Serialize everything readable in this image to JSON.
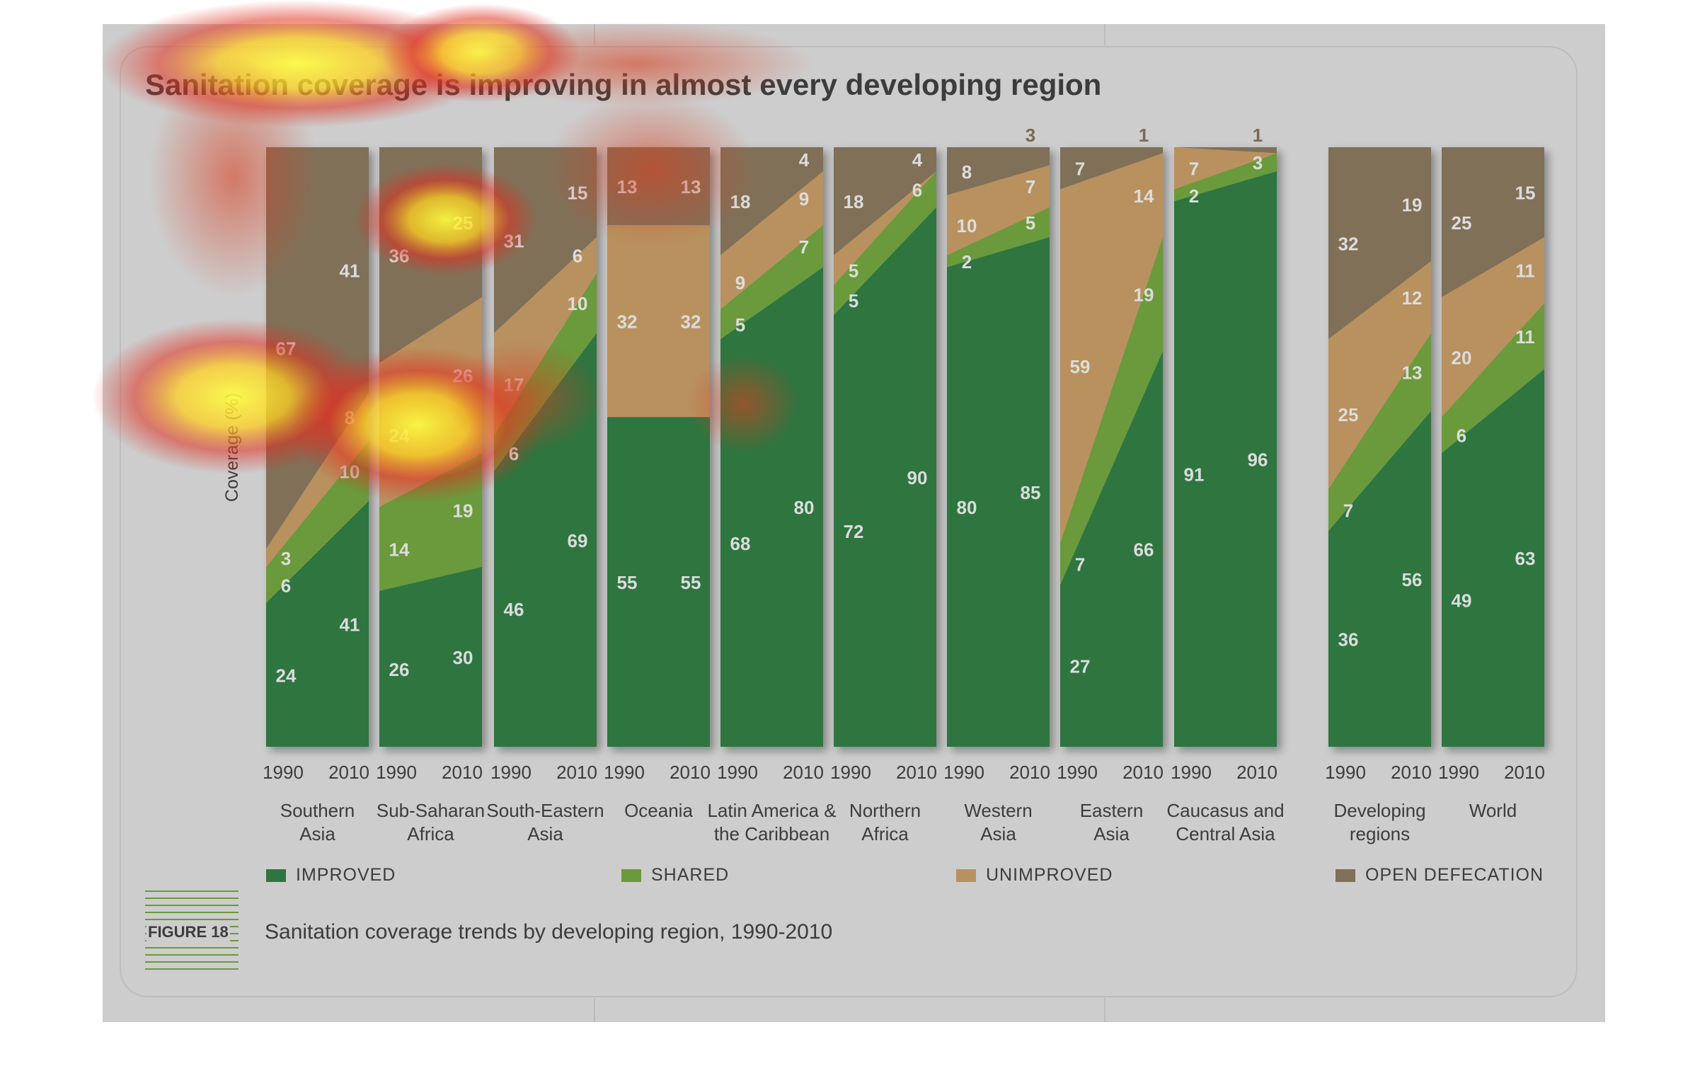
{
  "title": "Sanitation coverage is improving in almost every developing region",
  "figure": {
    "label": "FIGURE 18",
    "caption": "Sanitation coverage trends by developing region, 1990-2010"
  },
  "chart_data": {
    "type": "area",
    "title": "Sanitation coverage is improving in almost every developing region",
    "ylabel": "Coverage (%)",
    "ylim": [
      0,
      100
    ],
    "years": [
      "1990",
      "2010"
    ],
    "legend_position": "bottom",
    "series": [
      {
        "name": "IMPROVED",
        "color": "#2e7540"
      },
      {
        "name": "SHARED",
        "color": "#6a9a3a"
      },
      {
        "name": "UNIMPROVED",
        "color": "#b8915f"
      },
      {
        "name": "OPEN DEFECATION",
        "color": "#807058"
      }
    ],
    "regions": [
      {
        "name": "Southern\nAsia",
        "v1990": [
          24,
          6,
          3,
          67
        ],
        "v2010": [
          41,
          10,
          8,
          41
        ]
      },
      {
        "name": "Sub-Saharan\nAfrica",
        "v1990": [
          26,
          14,
          24,
          36
        ],
        "v2010": [
          30,
          19,
          26,
          25
        ]
      },
      {
        "name": "South-Eastern\nAsia",
        "v1990": [
          46,
          6,
          17,
          31
        ],
        "v2010": [
          69,
          10,
          6,
          15
        ]
      },
      {
        "name": "Oceania",
        "v1990": [
          55,
          0,
          32,
          13
        ],
        "v2010": [
          55,
          0,
          32,
          13
        ]
      },
      {
        "name": "Latin America &\nthe Caribbean",
        "v1990": [
          68,
          5,
          9,
          18
        ],
        "v2010": [
          80,
          7,
          9,
          4
        ]
      },
      {
        "name": "Northern\nAfrica",
        "v1990": [
          72,
          5,
          5,
          18
        ],
        "v2010": [
          90,
          6,
          0,
          4
        ]
      },
      {
        "name": "Western\nAsia",
        "v1990": [
          80,
          2,
          10,
          8
        ],
        "v2010": [
          85,
          5,
          7,
          3
        ]
      },
      {
        "name": "Eastern\nAsia",
        "v1990": [
          27,
          7,
          59,
          7
        ],
        "v2010": [
          66,
          19,
          14,
          1
        ]
      },
      {
        "name": "Caucasus and\nCentral Asia",
        "v1990": [
          91,
          2,
          7,
          0
        ],
        "v2010": [
          96,
          3,
          0,
          1
        ]
      },
      {
        "name": "Developing\nregions",
        "v1990": [
          36,
          7,
          25,
          32
        ],
        "v2010": [
          56,
          13,
          12,
          19
        ]
      },
      {
        "name": "World",
        "v1990": [
          49,
          6,
          20,
          25
        ],
        "v2010": [
          63,
          11,
          11,
          15
        ]
      }
    ]
  }
}
